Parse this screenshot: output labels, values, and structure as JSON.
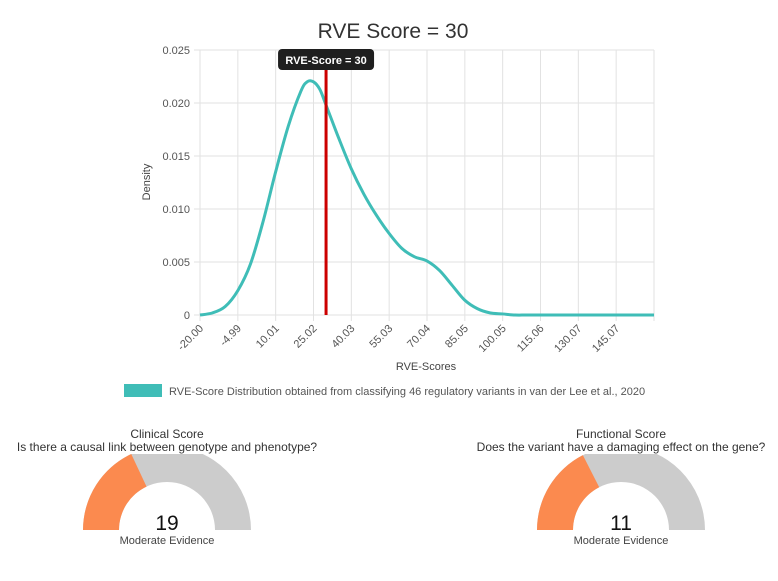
{
  "chart_data": {
    "type": "line",
    "title": "RVE Score = 30",
    "xlabel": "RVE-Scores",
    "ylabel": "Density",
    "x_ticks": [
      "-20.00",
      "-4.99",
      "10.01",
      "25.02",
      "40.03",
      "55.03",
      "70.04",
      "85.05",
      "100.05",
      "115.06",
      "130.07",
      "145.07"
    ],
    "xlim": [
      -20.0,
      160.08
    ],
    "ylim": [
      0,
      0.025
    ],
    "y_ticks": [
      "0",
      "0.005",
      "0.010",
      "0.015",
      "0.020",
      "0.025"
    ],
    "grid": true,
    "legend_position": "bottom",
    "series": [
      {
        "name": "RVE-Score Distribution obtained from classifying 46 regulatory variants in van der Lee et al., 2020",
        "color": "#3fbdb7",
        "x": [
          -20,
          -15,
          -10,
          -5,
          0,
          5,
          10,
          15,
          20,
          22.5,
          25,
          27.5,
          30,
          35,
          40,
          45,
          50,
          55,
          60,
          65,
          70,
          75,
          80,
          85,
          90,
          95,
          100,
          105,
          110,
          120,
          130,
          140,
          150,
          160.08
        ],
        "y": [
          0.0,
          0.0002,
          0.0008,
          0.0023,
          0.0048,
          0.0088,
          0.0135,
          0.0178,
          0.0211,
          0.022,
          0.022,
          0.0213,
          0.0198,
          0.0167,
          0.0138,
          0.0114,
          0.0094,
          0.0077,
          0.0063,
          0.0055,
          0.0051,
          0.0042,
          0.0028,
          0.0014,
          0.0006,
          0.0002,
          0.0001,
          0.0,
          0.0,
          0.0,
          0.0,
          0.0,
          0.0,
          0.0
        ]
      }
    ],
    "marker": {
      "x": 30,
      "label": "RVE-Score = 30",
      "color": "#cc0000"
    }
  },
  "gauges": [
    {
      "title": "Clinical Score",
      "question": "Is there a causal link between genotype and phenotype?",
      "value": "19",
      "fraction": 0.36,
      "caption": "Moderate Evidence",
      "fill_color": "#fb8a4f",
      "track_color": "#cccccc"
    },
    {
      "title": "Functional Score",
      "question": "Does the variant have a damaging effect on the gene?",
      "value": "11",
      "fraction": 0.35,
      "caption": "Moderate Evidence",
      "fill_color": "#fb8a4f",
      "track_color": "#cccccc"
    }
  ]
}
